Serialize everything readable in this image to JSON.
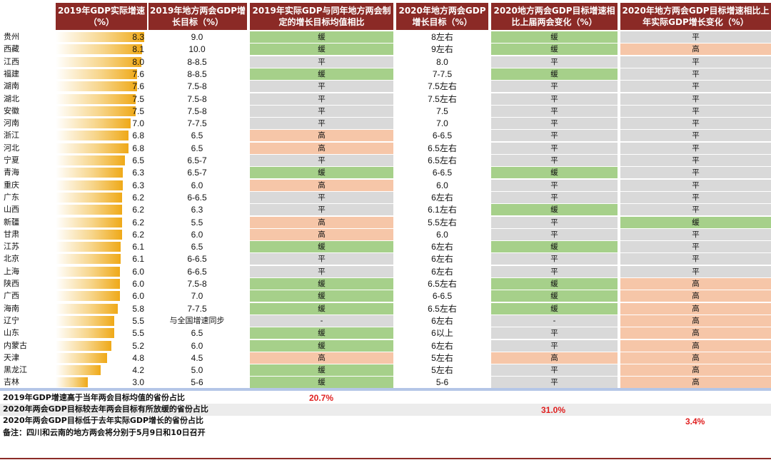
{
  "headers": {
    "h1": "2019年GDP实际增速（%）",
    "h2": "2019年地方两会GDP增长目标（%）",
    "h3": "2019年实际GDP与同年地方两会制定的增长目标均值相比",
    "h4": "2020年地方两会GDP增长目标（%）",
    "h5": "2020地方两会GDP目标增速相比上届两会变化（%）",
    "h6": "2020年地方两会GDP目标增速相比上年实际GDP增长变化（%）"
  },
  "rows": [
    {
      "province": "贵州",
      "gdp": "8.3",
      "gdp_num": 8.3,
      "target19": "9.0",
      "cmp": "缓",
      "target20": "8左右",
      "chg_prev": "缓",
      "chg_actual": "平"
    },
    {
      "province": "西藏",
      "gdp": "8.1",
      "gdp_num": 8.1,
      "target19": "10.0",
      "cmp": "缓",
      "target20": "9左右",
      "chg_prev": "缓",
      "chg_actual": "高"
    },
    {
      "province": "江西",
      "gdp": "8.0",
      "gdp_num": 8.0,
      "target19": "8-8.5",
      "cmp": "平",
      "target20": "8.0",
      "chg_prev": "平",
      "chg_actual": "平"
    },
    {
      "province": "福建",
      "gdp": "7.6",
      "gdp_num": 7.6,
      "target19": "8-8.5",
      "cmp": "缓",
      "target20": "7-7.5",
      "chg_prev": "缓",
      "chg_actual": "平"
    },
    {
      "province": "湖南",
      "gdp": "7.6",
      "gdp_num": 7.6,
      "target19": "7.5-8",
      "cmp": "平",
      "target20": "7.5左右",
      "chg_prev": "平",
      "chg_actual": "平"
    },
    {
      "province": "湖北",
      "gdp": "7.5",
      "gdp_num": 7.5,
      "target19": "7.5-8",
      "cmp": "平",
      "target20": "7.5左右",
      "chg_prev": "平",
      "chg_actual": "平"
    },
    {
      "province": "安徽",
      "gdp": "7.5",
      "gdp_num": 7.5,
      "target19": "7.5-8",
      "cmp": "平",
      "target20": "7.5",
      "chg_prev": "平",
      "chg_actual": "平"
    },
    {
      "province": "河南",
      "gdp": "7.0",
      "gdp_num": 7.0,
      "target19": "7-7.5",
      "cmp": "平",
      "target20": "7.0",
      "chg_prev": "平",
      "chg_actual": "平"
    },
    {
      "province": "浙江",
      "gdp": "6.8",
      "gdp_num": 6.8,
      "target19": "6.5",
      "cmp": "高",
      "target20": "6-6.5",
      "chg_prev": "平",
      "chg_actual": "平"
    },
    {
      "province": "河北",
      "gdp": "6.8",
      "gdp_num": 6.8,
      "target19": "6.5",
      "cmp": "高",
      "target20": "6.5左右",
      "chg_prev": "平",
      "chg_actual": "平"
    },
    {
      "province": "宁夏",
      "gdp": "6.5",
      "gdp_num": 6.5,
      "target19": "6.5-7",
      "cmp": "平",
      "target20": "6.5左右",
      "chg_prev": "平",
      "chg_actual": "平"
    },
    {
      "province": "青海",
      "gdp": "6.3",
      "gdp_num": 6.3,
      "target19": "6.5-7",
      "cmp": "缓",
      "target20": "6-6.5",
      "chg_prev": "缓",
      "chg_actual": "平"
    },
    {
      "province": "重庆",
      "gdp": "6.3",
      "gdp_num": 6.3,
      "target19": "6.0",
      "cmp": "高",
      "target20": "6.0",
      "chg_prev": "平",
      "chg_actual": "平"
    },
    {
      "province": "广东",
      "gdp": "6.2",
      "gdp_num": 6.2,
      "target19": "6-6.5",
      "cmp": "平",
      "target20": "6左右",
      "chg_prev": "平",
      "chg_actual": "平"
    },
    {
      "province": "山西",
      "gdp": "6.2",
      "gdp_num": 6.2,
      "target19": "6.3",
      "cmp": "平",
      "target20": "6.1左右",
      "chg_prev": "缓",
      "chg_actual": "平"
    },
    {
      "province": "新疆",
      "gdp": "6.2",
      "gdp_num": 6.2,
      "target19": "5.5",
      "cmp": "高",
      "target20": "5.5左右",
      "chg_prev": "平",
      "chg_actual": "缓"
    },
    {
      "province": "甘肃",
      "gdp": "6.2",
      "gdp_num": 6.2,
      "target19": "6.0",
      "cmp": "高",
      "target20": "6.0",
      "chg_prev": "平",
      "chg_actual": "平"
    },
    {
      "province": "江苏",
      "gdp": "6.1",
      "gdp_num": 6.1,
      "target19": "6.5",
      "cmp": "缓",
      "target20": "6左右",
      "chg_prev": "缓",
      "chg_actual": "平"
    },
    {
      "province": "北京",
      "gdp": "6.1",
      "gdp_num": 6.1,
      "target19": "6-6.5",
      "cmp": "平",
      "target20": "6左右",
      "chg_prev": "平",
      "chg_actual": "平"
    },
    {
      "province": "上海",
      "gdp": "6.0",
      "gdp_num": 6.0,
      "target19": "6-6.5",
      "cmp": "平",
      "target20": "6左右",
      "chg_prev": "平",
      "chg_actual": "平"
    },
    {
      "province": "陕西",
      "gdp": "6.0",
      "gdp_num": 6.0,
      "target19": "7.5-8",
      "cmp": "缓",
      "target20": "6.5左右",
      "chg_prev": "缓",
      "chg_actual": "高"
    },
    {
      "province": "广西",
      "gdp": "6.0",
      "gdp_num": 6.0,
      "target19": "7.0",
      "cmp": "缓",
      "target20": "6-6.5",
      "chg_prev": "缓",
      "chg_actual": "高"
    },
    {
      "province": "海南",
      "gdp": "5.8",
      "gdp_num": 5.8,
      "target19": "7-7.5",
      "cmp": "缓",
      "target20": "6.5左右",
      "chg_prev": "缓",
      "chg_actual": "高"
    },
    {
      "province": "辽宁",
      "gdp": "5.5",
      "gdp_num": 5.5,
      "target19": "与全国增速同步",
      "cmp": "-",
      "target20": "6左右",
      "chg_prev": "-",
      "chg_actual": "高"
    },
    {
      "province": "山东",
      "gdp": "5.5",
      "gdp_num": 5.5,
      "target19": "6.5",
      "cmp": "缓",
      "target20": "6以上",
      "chg_prev": "平",
      "chg_actual": "高"
    },
    {
      "province": "内蒙古",
      "gdp": "5.2",
      "gdp_num": 5.2,
      "target19": "6.0",
      "cmp": "缓",
      "target20": "6左右",
      "chg_prev": "平",
      "chg_actual": "高"
    },
    {
      "province": "天津",
      "gdp": "4.8",
      "gdp_num": 4.8,
      "target19": "4.5",
      "cmp": "高",
      "target20": "5左右",
      "chg_prev": "高",
      "chg_actual": "高"
    },
    {
      "province": "黑龙江",
      "gdp": "4.2",
      "gdp_num": 4.2,
      "target19": "5.0",
      "cmp": "缓",
      "target20": "5左右",
      "chg_prev": "平",
      "chg_actual": "高"
    },
    {
      "province": "吉林",
      "gdp": "3.0",
      "gdp_num": 3.0,
      "target19": "5-6",
      "cmp": "缓",
      "target20": "5-6",
      "chg_prev": "平",
      "chg_actual": "高"
    }
  ],
  "footer": {
    "line1_label": "2019年GDP增速高于当年两会目标均值的省份占比",
    "line1_value": "20.7%",
    "line2_label": "2020年两会GDP目标较去年两会目标有所放缓的省份占比",
    "line2_value": "31.0%",
    "line3_label": "2020年两会GDP目标低于去年实际GDP增长的省份占比",
    "line3_value": "3.4%",
    "note": "备注：四川和云南的地方两会将分别于5月9日和10日召开"
  },
  "colors": {
    "header_bg": "#8b2a26",
    "green": "#a6d08a",
    "red": "#f6c6a8",
    "neutral": "#d9d9d9",
    "bar_gold": "#efa918",
    "footer_value": "#e02020"
  },
  "bar_scale_max": 8.3
}
